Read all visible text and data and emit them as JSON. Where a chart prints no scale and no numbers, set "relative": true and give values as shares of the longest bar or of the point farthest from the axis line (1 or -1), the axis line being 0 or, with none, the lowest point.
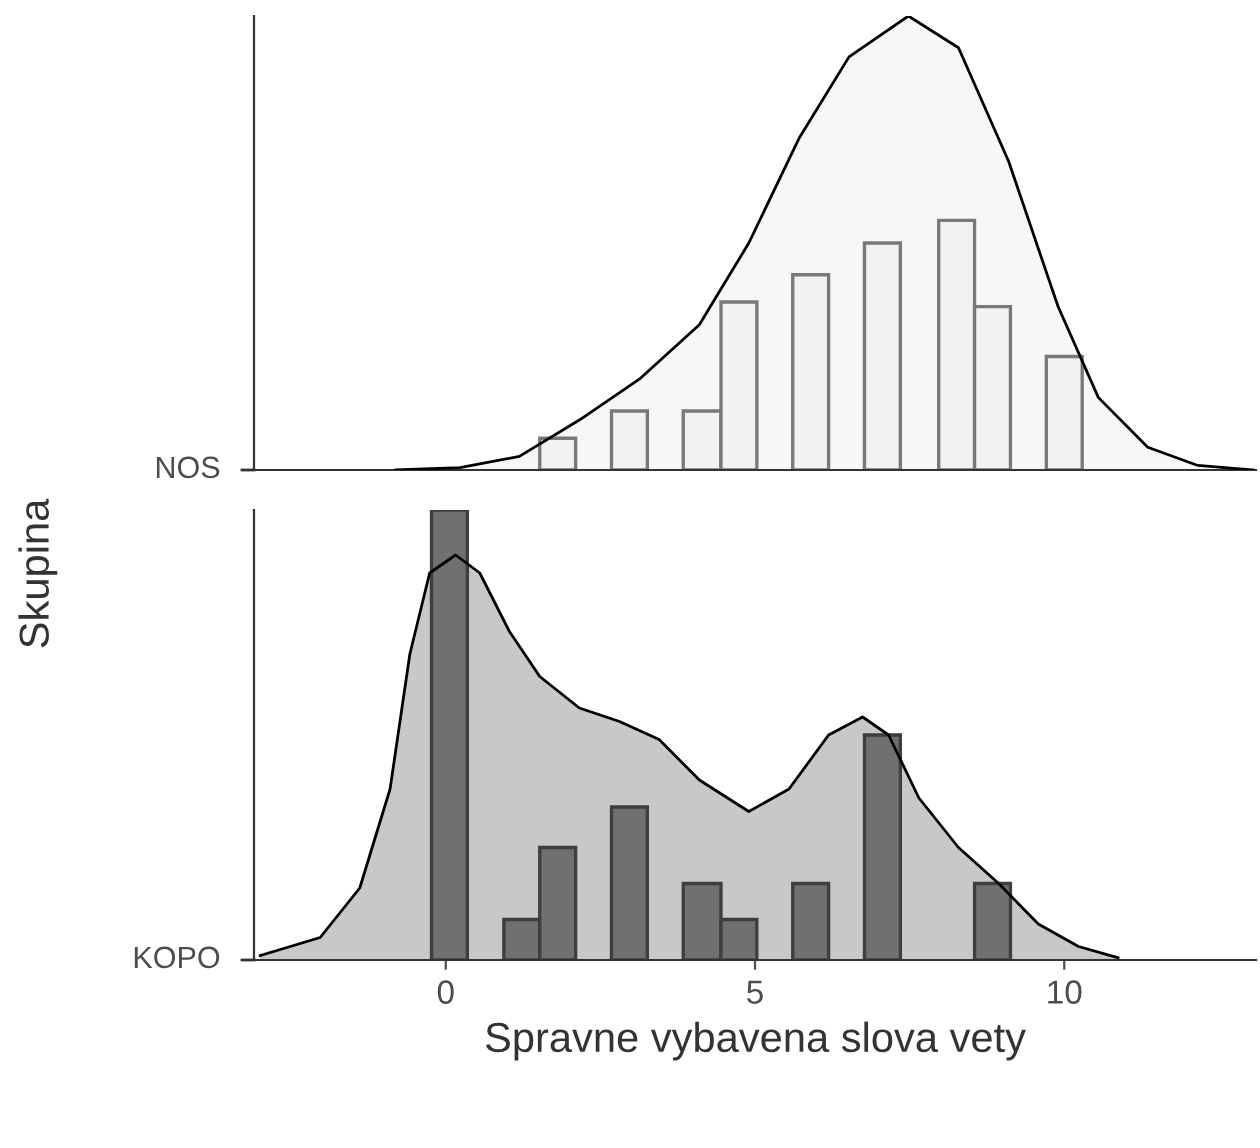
{
  "chart_data": [
    {
      "type": "area",
      "relative": true,
      "ylabel": "Skupina",
      "xlim": [
        -3.1,
        13.1
      ],
      "xticks": [
        0,
        5,
        10
      ],
      "tick_labels": false,
      "grid": false,
      "legend": false,
      "series": [
        {
          "name": "NOS",
          "color": "#f7f7f7",
          "x": [
            -0.81,
            0.23,
            1.19,
            2.16,
            3.13,
            4.1,
            4.9,
            5.71,
            6.52,
            7.48,
            8.29,
            9.1,
            9.9,
            10.55,
            11.35,
            12.16,
            13.06
          ],
          "values": [
            0,
            0.005,
            0.03,
            0.11,
            0.2,
            0.32,
            0.5,
            0.73,
            0.91,
            1.0,
            0.93,
            0.68,
            0.36,
            0.16,
            0.05,
            0.01,
            0
          ]
        },
        {
          "type": "histogram",
          "color": "#f2f2f2",
          "bins": [
            1.52,
            2.1,
            2.68,
            3.26,
            3.84,
            4.45,
            5.03,
            5.61,
            6.19,
            6.77,
            7.35,
            7.97,
            8.55,
            9.13,
            9.71,
            10.29
          ],
          "values": [
            0.07,
            0,
            0.13,
            0,
            0.13,
            0.37,
            0,
            0.43,
            0,
            0.5,
            0,
            0.55,
            0.36,
            0,
            0.25
          ]
        }
      ]
    },
    {
      "type": "area",
      "relative": true,
      "xlabel": "Spravne vybavena slova vety",
      "xlim": [
        -3.1,
        13.1
      ],
      "xticks": [
        0,
        5,
        10
      ],
      "tick_labels": "x",
      "grid": false,
      "legend": false,
      "series": [
        {
          "name": "KOPO",
          "color": "#c8c8c8",
          "x": [
            -3.0,
            -2.03,
            -1.39,
            -0.9,
            -0.58,
            -0.26,
            0.16,
            0.55,
            1.03,
            1.52,
            2.16,
            2.81,
            3.45,
            4.1,
            4.9,
            5.55,
            6.19,
            6.74,
            7.16,
            7.65,
            8.29,
            8.94,
            9.58,
            10.23,
            10.87
          ],
          "values": [
            0.01,
            0.05,
            0.16,
            0.38,
            0.68,
            0.86,
            0.9,
            0.86,
            0.73,
            0.63,
            0.56,
            0.53,
            0.49,
            0.4,
            0.33,
            0.38,
            0.5,
            0.54,
            0.5,
            0.36,
            0.25,
            0.17,
            0.08,
            0.03,
            0.005
          ]
        },
        {
          "type": "histogram",
          "color": "#707070",
          "bins": [
            -0.23,
            0.35,
            0.94,
            1.52,
            2.1,
            2.68,
            3.26,
            3.84,
            4.45,
            5.03,
            5.61,
            6.19,
            6.77,
            7.35,
            8.55,
            9.13
          ],
          "values": [
            1.0,
            0,
            0.09,
            0.25,
            0,
            0.34,
            0,
            0.17,
            0.09,
            0,
            0.17,
            0,
            0.5,
            0,
            0.17
          ]
        }
      ]
    }
  ]
}
